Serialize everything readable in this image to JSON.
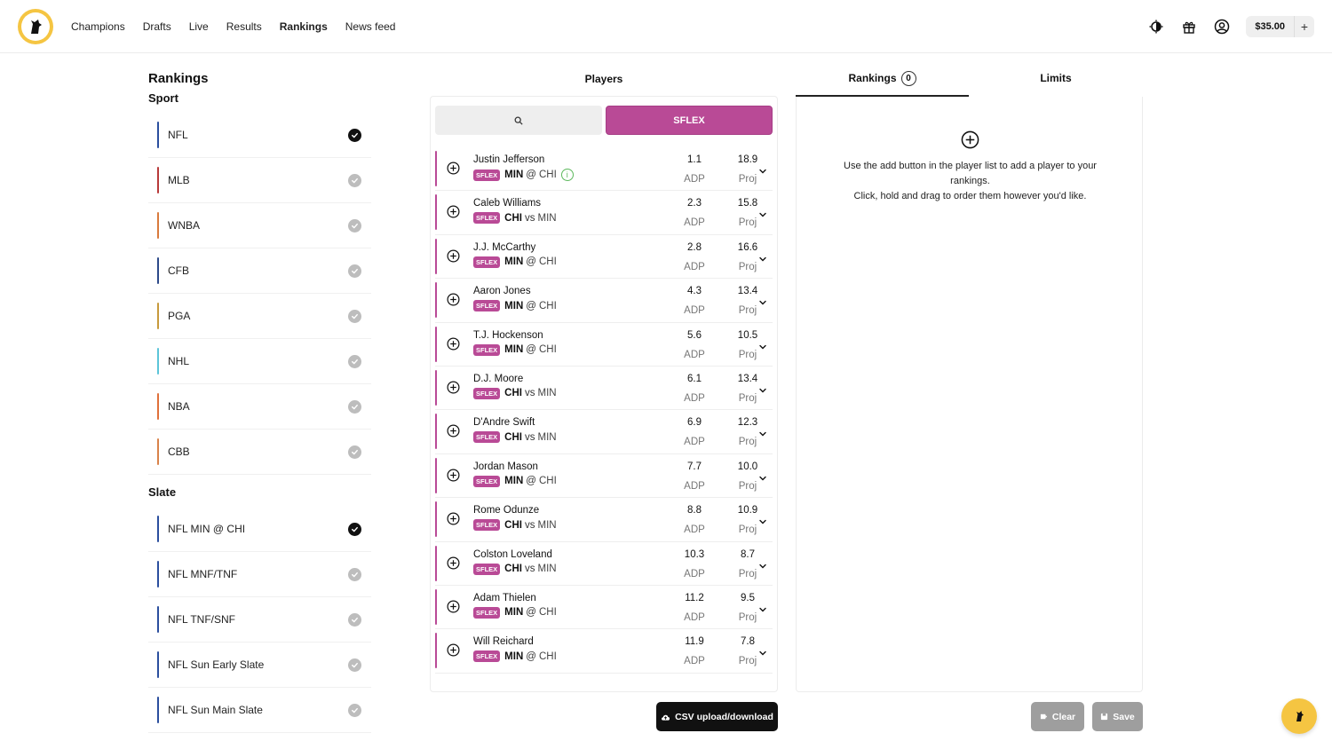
{
  "nav": {
    "items": [
      {
        "label": "Champions",
        "active": false
      },
      {
        "label": "Drafts",
        "active": false
      },
      {
        "label": "Live",
        "active": false
      },
      {
        "label": "Results",
        "active": false
      },
      {
        "label": "Rankings",
        "active": true
      },
      {
        "label": "News feed",
        "active": false
      }
    ],
    "balance": "$35.00",
    "balance_add": "+",
    "icons": [
      "theme-toggle-icon",
      "gift-icon",
      "account-icon"
    ]
  },
  "left": {
    "title": "Rankings",
    "sport_title": "Sport",
    "sports": [
      {
        "label": "NFL",
        "color": "#2b4f9e",
        "selected": true
      },
      {
        "label": "MLB",
        "color": "#b83a3a",
        "selected": false
      },
      {
        "label": "WNBA",
        "color": "#d97a3c",
        "selected": false
      },
      {
        "label": "CFB",
        "color": "#2d4a8a",
        "selected": false
      },
      {
        "label": "PGA",
        "color": "#c79a3c",
        "selected": false
      },
      {
        "label": "NHL",
        "color": "#5cc5d9",
        "selected": false
      },
      {
        "label": "NBA",
        "color": "#e0703a",
        "selected": false
      },
      {
        "label": "CBB",
        "color": "#d9824a",
        "selected": false
      }
    ],
    "slate_title": "Slate",
    "slates": [
      {
        "label": "NFL MIN @ CHI",
        "selected": true
      },
      {
        "label": "NFL MNF/TNF",
        "selected": false
      },
      {
        "label": "NFL TNF/SNF",
        "selected": false
      },
      {
        "label": "NFL Sun Early Slate",
        "selected": false
      },
      {
        "label": "NFL Sun Main Slate",
        "selected": false
      }
    ],
    "slate_color": "#2b4f9e"
  },
  "middle": {
    "title": "Players",
    "filter_label": "SFLEX",
    "accent": "#b94a96",
    "adp_label": "ADP",
    "proj_label": "Proj",
    "position_tag": "SFLEX",
    "players": [
      {
        "name": "Justin Jefferson",
        "team": "MIN",
        "sep": "@",
        "opp": "CHI",
        "adp": "1.1",
        "proj": "18.9",
        "info": true
      },
      {
        "name": "Caleb Williams",
        "team": "CHI",
        "sep": "vs",
        "opp": "MIN",
        "adp": "2.3",
        "proj": "15.8",
        "info": false
      },
      {
        "name": "J.J. McCarthy",
        "team": "MIN",
        "sep": "@",
        "opp": "CHI",
        "adp": "2.8",
        "proj": "16.6",
        "info": false
      },
      {
        "name": "Aaron Jones",
        "team": "MIN",
        "sep": "@",
        "opp": "CHI",
        "adp": "4.3",
        "proj": "13.4",
        "info": false
      },
      {
        "name": "T.J. Hockenson",
        "team": "MIN",
        "sep": "@",
        "opp": "CHI",
        "adp": "5.6",
        "proj": "10.5",
        "info": false
      },
      {
        "name": "D.J. Moore",
        "team": "CHI",
        "sep": "vs",
        "opp": "MIN",
        "adp": "6.1",
        "proj": "13.4",
        "info": false
      },
      {
        "name": "D'Andre Swift",
        "team": "CHI",
        "sep": "vs",
        "opp": "MIN",
        "adp": "6.9",
        "proj": "12.3",
        "info": false
      },
      {
        "name": "Jordan Mason",
        "team": "MIN",
        "sep": "@",
        "opp": "CHI",
        "adp": "7.7",
        "proj": "10.0",
        "info": false
      },
      {
        "name": "Rome Odunze",
        "team": "CHI",
        "sep": "vs",
        "opp": "MIN",
        "adp": "8.8",
        "proj": "10.9",
        "info": false
      },
      {
        "name": "Colston Loveland",
        "team": "CHI",
        "sep": "vs",
        "opp": "MIN",
        "adp": "10.3",
        "proj": "8.7",
        "info": false
      },
      {
        "name": "Adam Thielen",
        "team": "MIN",
        "sep": "@",
        "opp": "CHI",
        "adp": "11.2",
        "proj": "9.5",
        "info": false
      },
      {
        "name": "Will Reichard",
        "team": "MIN",
        "sep": "@",
        "opp": "CHI",
        "adp": "11.9",
        "proj": "7.8",
        "info": false
      }
    ],
    "csv_label": "CSV upload/download"
  },
  "right": {
    "tab_rankings": "Rankings",
    "rankings_count": "0",
    "tab_limits": "Limits",
    "empty_line1": "Use the add button in the player list to add a player to your rankings.",
    "empty_line2": "Click, hold and drag to order them however you'd like.",
    "clear_label": "Clear",
    "save_label": "Save"
  }
}
